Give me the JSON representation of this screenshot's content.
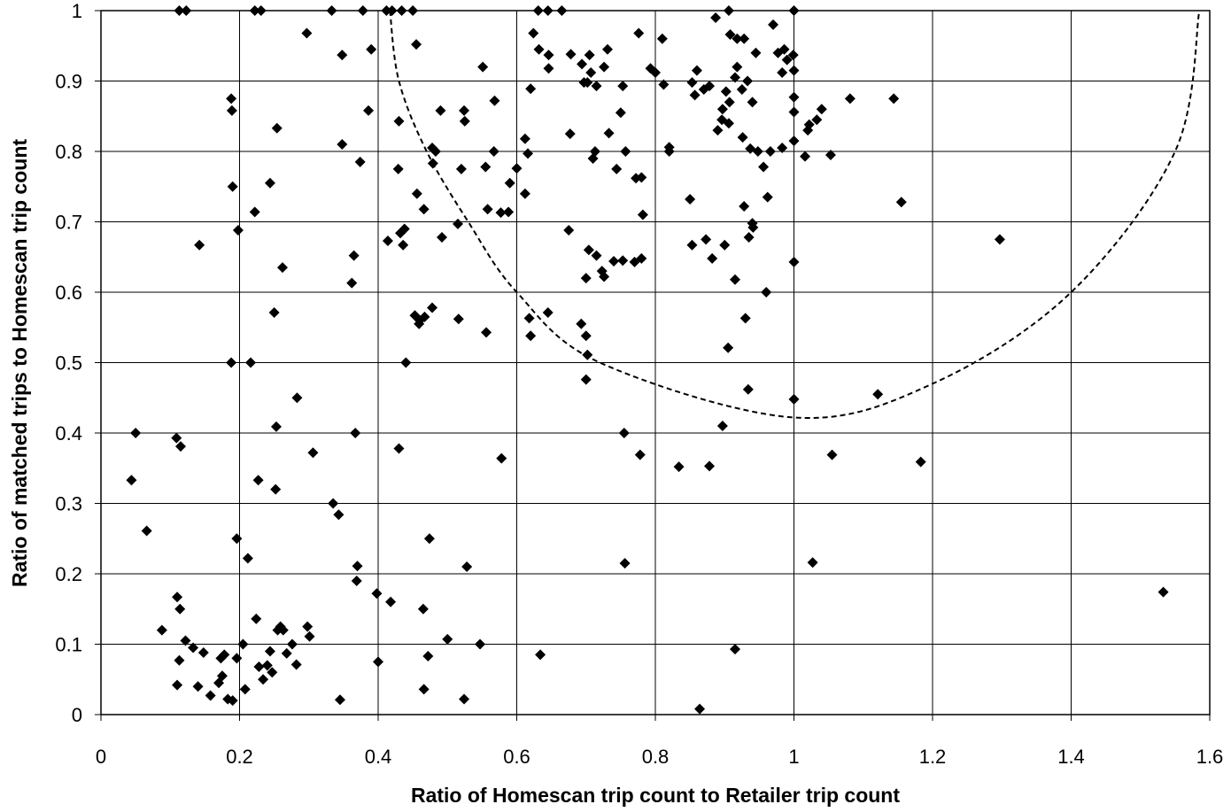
{
  "chart_data": {
    "type": "scatter",
    "title": "",
    "xlabel": "Ratio of Homescan trip count to Retailer trip count",
    "ylabel": "Ratio of matched trips to Homescan trip count",
    "xlim": [
      0,
      1.6
    ],
    "ylim": [
      0,
      1
    ],
    "x_ticks": [
      "0",
      "0.2",
      "0.4",
      "0.6",
      "0.8",
      "1",
      "1.2",
      "1.4",
      "1.6"
    ],
    "y_ticks": [
      "0",
      "0.1",
      "0.2",
      "0.3",
      "0.4",
      "0.5",
      "0.6",
      "0.7",
      "0.8",
      "0.9",
      "1"
    ],
    "grid": true,
    "legend": "none",
    "marker": "diamond",
    "marker_color": "#000000",
    "series": [
      {
        "points": [
          [
            0.113,
            1.0
          ],
          [
            0.123,
            1.0
          ],
          [
            0.222,
            1.0
          ],
          [
            0.231,
            1.0
          ],
          [
            0.333,
            1.0
          ],
          [
            0.378,
            1.0
          ],
          [
            0.412,
            1.0
          ],
          [
            0.42,
            1.0
          ],
          [
            0.434,
            1.0
          ],
          [
            0.45,
            1.0
          ],
          [
            0.631,
            1.0
          ],
          [
            0.645,
            1.0
          ],
          [
            0.665,
            1.0
          ],
          [
            0.906,
            1.0
          ],
          [
            1.0,
            1.0
          ],
          [
            0.297,
            0.968
          ],
          [
            0.348,
            0.937
          ],
          [
            0.39,
            0.945
          ],
          [
            0.455,
            0.952
          ],
          [
            0.624,
            0.968
          ],
          [
            0.632,
            0.945
          ],
          [
            0.646,
            0.937
          ],
          [
            0.694,
            0.924
          ],
          [
            0.705,
            0.937
          ],
          [
            0.731,
            0.945
          ],
          [
            0.776,
            0.968
          ],
          [
            0.81,
            0.96
          ],
          [
            0.887,
            0.99
          ],
          [
            0.908,
            0.966
          ],
          [
            0.918,
            0.96
          ],
          [
            0.928,
            0.96
          ],
          [
            0.945,
            0.94
          ],
          [
            0.97,
            0.98
          ],
          [
            0.977,
            0.94
          ],
          [
            0.986,
            0.945
          ],
          [
            0.999,
            0.937
          ],
          [
            0.188,
            0.875
          ],
          [
            0.189,
            0.858
          ],
          [
            0.386,
            0.858
          ],
          [
            0.49,
            0.858
          ],
          [
            0.524,
            0.858
          ],
          [
            0.551,
            0.92
          ],
          [
            0.568,
            0.872
          ],
          [
            0.62,
            0.889
          ],
          [
            0.646,
            0.918
          ],
          [
            0.678,
            0.938
          ],
          [
            0.697,
            0.898
          ],
          [
            0.702,
            0.898
          ],
          [
            0.707,
            0.912
          ],
          [
            0.715,
            0.893
          ],
          [
            0.726,
            0.92
          ],
          [
            0.753,
            0.893
          ],
          [
            0.793,
            0.918
          ],
          [
            0.8,
            0.912
          ],
          [
            0.812,
            0.895
          ],
          [
            0.853,
            0.898
          ],
          [
            0.86,
            0.915
          ],
          [
            0.87,
            0.888
          ],
          [
            0.878,
            0.893
          ],
          [
            0.89,
            0.83
          ],
          [
            0.897,
            0.86
          ],
          [
            0.902,
            0.885
          ],
          [
            0.907,
            0.87
          ],
          [
            0.915,
            0.905
          ],
          [
            0.918,
            0.92
          ],
          [
            0.925,
            0.888
          ],
          [
            0.933,
            0.9
          ],
          [
            0.94,
            0.87
          ],
          [
            0.983,
            0.912
          ],
          [
            0.99,
            0.93
          ],
          [
            1.0,
            0.915
          ],
          [
            1.0,
            0.877
          ],
          [
            1.0,
            0.856
          ],
          [
            1.02,
            0.83
          ],
          [
            1.022,
            0.838
          ],
          [
            1.033,
            0.845
          ],
          [
            1.04,
            0.86
          ],
          [
            1.081,
            0.875
          ],
          [
            1.144,
            0.875
          ],
          [
            0.254,
            0.833
          ],
          [
            0.348,
            0.81
          ],
          [
            0.43,
            0.843
          ],
          [
            0.478,
            0.805
          ],
          [
            0.483,
            0.8
          ],
          [
            0.525,
            0.843
          ],
          [
            0.567,
            0.8
          ],
          [
            0.6,
            0.776
          ],
          [
            0.612,
            0.818
          ],
          [
            0.616,
            0.797
          ],
          [
            0.677,
            0.825
          ],
          [
            0.71,
            0.79
          ],
          [
            0.713,
            0.8
          ],
          [
            0.733,
            0.826
          ],
          [
            0.75,
            0.855
          ],
          [
            0.757,
            0.8
          ],
          [
            0.82,
            0.8
          ],
          [
            0.82,
            0.806
          ],
          [
            0.857,
            0.88
          ],
          [
            0.896,
            0.845
          ],
          [
            0.906,
            0.84
          ],
          [
            0.926,
            0.82
          ],
          [
            0.937,
            0.804
          ],
          [
            0.948,
            0.8
          ],
          [
            0.966,
            0.8
          ],
          [
            0.983,
            0.805
          ],
          [
            1.0,
            0.815
          ],
          [
            1.016,
            0.793
          ],
          [
            1.053,
            0.795
          ],
          [
            0.19,
            0.75
          ],
          [
            0.244,
            0.755
          ],
          [
            0.374,
            0.785
          ],
          [
            0.429,
            0.775
          ],
          [
            0.456,
            0.74
          ],
          [
            0.466,
            0.718
          ],
          [
            0.479,
            0.783
          ],
          [
            0.52,
            0.775
          ],
          [
            0.555,
            0.778
          ],
          [
            0.558,
            0.718
          ],
          [
            0.577,
            0.713
          ],
          [
            0.588,
            0.714
          ],
          [
            0.59,
            0.755
          ],
          [
            0.612,
            0.74
          ],
          [
            0.744,
            0.775
          ],
          [
            0.772,
            0.762
          ],
          [
            0.78,
            0.763
          ],
          [
            0.782,
            0.71
          ],
          [
            0.85,
            0.732
          ],
          [
            0.928,
            0.722
          ],
          [
            0.956,
            0.778
          ],
          [
            0.962,
            0.735
          ],
          [
            1.155,
            0.728
          ],
          [
            0.142,
            0.667
          ],
          [
            0.198,
            0.688
          ],
          [
            0.222,
            0.714
          ],
          [
            0.262,
            0.635
          ],
          [
            0.362,
            0.613
          ],
          [
            0.365,
            0.652
          ],
          [
            0.414,
            0.673
          ],
          [
            0.432,
            0.684
          ],
          [
            0.436,
            0.667
          ],
          [
            0.438,
            0.69
          ],
          [
            0.492,
            0.678
          ],
          [
            0.515,
            0.697
          ],
          [
            0.675,
            0.688
          ],
          [
            0.7,
            0.62
          ],
          [
            0.704,
            0.66
          ],
          [
            0.715,
            0.652
          ],
          [
            0.723,
            0.63
          ],
          [
            0.726,
            0.622
          ],
          [
            0.74,
            0.644
          ],
          [
            0.753,
            0.645
          ],
          [
            0.77,
            0.643
          ],
          [
            0.78,
            0.648
          ],
          [
            0.853,
            0.667
          ],
          [
            0.873,
            0.675
          ],
          [
            0.882,
            0.648
          ],
          [
            0.9,
            0.667
          ],
          [
            0.915,
            0.618
          ],
          [
            0.935,
            0.678
          ],
          [
            0.94,
            0.698
          ],
          [
            0.941,
            0.692
          ],
          [
            0.96,
            0.6
          ],
          [
            1.0,
            0.643
          ],
          [
            1.297,
            0.675
          ],
          [
            0.188,
            0.5
          ],
          [
            0.216,
            0.5
          ],
          [
            0.25,
            0.571
          ],
          [
            0.44,
            0.5
          ],
          [
            0.453,
            0.567
          ],
          [
            0.459,
            0.555
          ],
          [
            0.46,
            0.56
          ],
          [
            0.467,
            0.565
          ],
          [
            0.478,
            0.578
          ],
          [
            0.516,
            0.562
          ],
          [
            0.556,
            0.543
          ],
          [
            0.618,
            0.563
          ],
          [
            0.62,
            0.538
          ],
          [
            0.645,
            0.571
          ],
          [
            0.693,
            0.555
          ],
          [
            0.7,
            0.538
          ],
          [
            0.702,
            0.511
          ],
          [
            0.93,
            0.563
          ],
          [
            0.905,
            0.521
          ],
          [
            0.897,
            0.41
          ],
          [
            0.934,
            0.462
          ],
          [
            1.0,
            0.448
          ],
          [
            1.121,
            0.455
          ],
          [
            0.044,
            0.333
          ],
          [
            0.05,
            0.4
          ],
          [
            0.109,
            0.393
          ],
          [
            0.115,
            0.381
          ],
          [
            0.196,
            0.25
          ],
          [
            0.227,
            0.333
          ],
          [
            0.253,
            0.409
          ],
          [
            0.252,
            0.32
          ],
          [
            0.283,
            0.45
          ],
          [
            0.306,
            0.372
          ],
          [
            0.335,
            0.3
          ],
          [
            0.343,
            0.284
          ],
          [
            0.367,
            0.4
          ],
          [
            0.43,
            0.378
          ],
          [
            0.474,
            0.25
          ],
          [
            0.528,
            0.21
          ],
          [
            0.578,
            0.364
          ],
          [
            0.7,
            0.476
          ],
          [
            0.755,
            0.4
          ],
          [
            0.778,
            0.369
          ],
          [
            0.834,
            0.352
          ],
          [
            0.878,
            0.353
          ],
          [
            1.055,
            0.369
          ],
          [
            1.183,
            0.359
          ],
          [
            0.066,
            0.261
          ],
          [
            0.088,
            0.12
          ],
          [
            0.11,
            0.167
          ],
          [
            0.114,
            0.15
          ],
          [
            0.113,
            0.077
          ],
          [
            0.122,
            0.105
          ],
          [
            0.11,
            0.042
          ],
          [
            0.133,
            0.095
          ],
          [
            0.14,
            0.04
          ],
          [
            0.148,
            0.088
          ],
          [
            0.158,
            0.027
          ],
          [
            0.17,
            0.045
          ],
          [
            0.173,
            0.08
          ],
          [
            0.175,
            0.055
          ],
          [
            0.178,
            0.085
          ],
          [
            0.183,
            0.022
          ],
          [
            0.19,
            0.02
          ],
          [
            0.196,
            0.08
          ],
          [
            0.205,
            0.1
          ],
          [
            0.208,
            0.036
          ],
          [
            0.212,
            0.222
          ],
          [
            0.224,
            0.136
          ],
          [
            0.228,
            0.068
          ],
          [
            0.234,
            0.05
          ],
          [
            0.24,
            0.07
          ],
          [
            0.244,
            0.09
          ],
          [
            0.247,
            0.06
          ],
          [
            0.255,
            0.12
          ],
          [
            0.259,
            0.125
          ],
          [
            0.263,
            0.12
          ],
          [
            0.268,
            0.087
          ],
          [
            0.276,
            0.1
          ],
          [
            0.282,
            0.071
          ],
          [
            0.298,
            0.125
          ],
          [
            0.301,
            0.111
          ],
          [
            0.345,
            0.021
          ],
          [
            0.369,
            0.19
          ],
          [
            0.37,
            0.211
          ],
          [
            0.398,
            0.172
          ],
          [
            0.4,
            0.075
          ],
          [
            0.418,
            0.16
          ],
          [
            0.465,
            0.15
          ],
          [
            0.466,
            0.036
          ],
          [
            0.472,
            0.083
          ],
          [
            0.5,
            0.107
          ],
          [
            0.524,
            0.022
          ],
          [
            0.547,
            0.1
          ],
          [
            0.634,
            0.085
          ],
          [
            0.756,
            0.215
          ],
          [
            0.864,
            0.008
          ],
          [
            0.915,
            0.093
          ],
          [
            1.027,
            0.216
          ],
          [
            1.533,
            0.174
          ]
        ]
      }
    ],
    "curve": {
      "style": "dashed",
      "points": [
        [
          0.417,
          1.0
        ],
        [
          0.43,
          0.9
        ],
        [
          0.47,
          0.8
        ],
        [
          0.53,
          0.7
        ],
        [
          0.6,
          0.6
        ],
        [
          0.72,
          0.5
        ],
        [
          1.0,
          0.422
        ],
        [
          1.2,
          0.47
        ],
        [
          1.4,
          0.6
        ],
        [
          1.55,
          0.8
        ],
        [
          1.585,
          1.0
        ]
      ]
    }
  }
}
